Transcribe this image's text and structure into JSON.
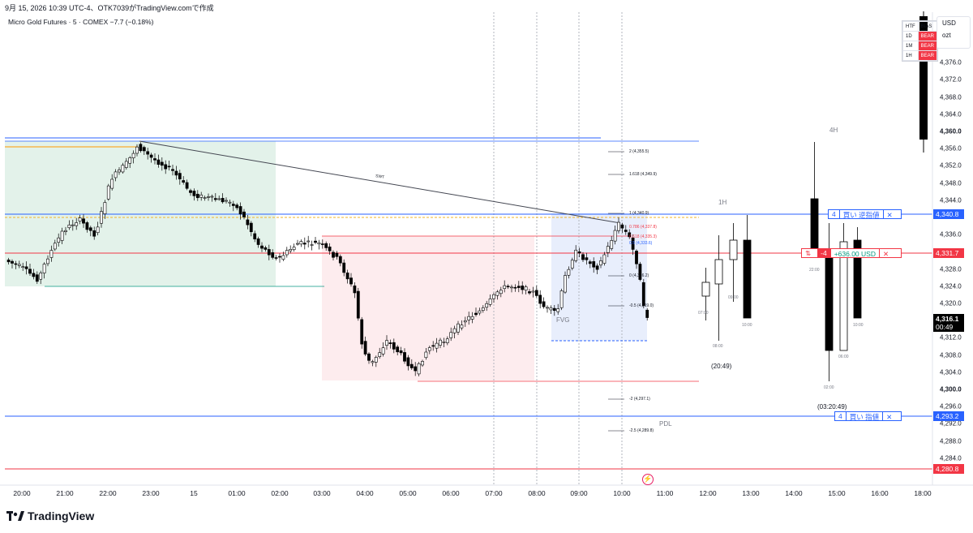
{
  "header": {
    "timestamp_line": "9月 15, 2026 10:39 UTC-4、OTK7039がTradingView.comで作成",
    "symbol_line": "Micro Gold Futures · 5 · COMEX  −7.7 (−0.18%)"
  },
  "axis": {
    "currency": "USD",
    "unit": "ozt",
    "ticks": [
      "4,376.0",
      "4,372.0",
      "4,368.0",
      "4,364.0",
      "4,360.0",
      "4,356.0",
      "4,352.0",
      "4,348.0",
      "4,344.0",
      "4,336.0",
      "4,328.0",
      "4,324.0",
      "4,320.0",
      "4,312.0",
      "4,308.0",
      "4,304.0",
      "4,300.0",
      "4,296.0",
      "4,292.0",
      "4,288.0",
      "4,284.0"
    ]
  },
  "price_tags": {
    "upper_blue": "4,340.8",
    "red_mid": "4,331.7",
    "current_price": "4,316.1",
    "current_countdown": "00:49",
    "lower_blue": "4,293.2",
    "bottom_red": "4,280.8"
  },
  "orders": {
    "stop_buy": {
      "qty": "4",
      "label": "買い 逆指値",
      "close": "✕"
    },
    "position": {
      "icon": "⇅",
      "qty": "-4",
      "pnl": "+636.00 USD",
      "close": "✕"
    },
    "limit_buy": {
      "qty": "4",
      "label": "買い 指値",
      "close": "✕"
    }
  },
  "bias_table": {
    "header": [
      "HTF",
      "BIAS"
    ],
    "rows": [
      [
        "1D",
        "BEAR"
      ],
      [
        "1M",
        "BEAR"
      ],
      [
        "1H",
        "BEAR"
      ]
    ]
  },
  "x_axis": [
    "20:00",
    "21:00",
    "22:00",
    "23:00",
    "15",
    "01:00",
    "02:00",
    "03:00",
    "04:00",
    "05:00",
    "06:00",
    "07:00",
    "08:00",
    "09:00",
    "10:00",
    "11:00",
    "12:00",
    "13:00",
    "14:00",
    "15:00",
    "16:00",
    "18:00"
  ],
  "fib_levels": [
    "2 (4,355.5)",
    "1.618 (4,349.9)",
    "1 (4,340.9)",
    "0.786 (4,337.8)",
    "0.618 (4,335.3)",
    "0.5 (4,333.6)",
    "0 (4,326.2)",
    "-0.5 (4,319.0)",
    "-2 (4,297.1)",
    "-2.5 (4,289.8)"
  ],
  "annotations": {
    "swing_label": "SWT",
    "pdl": "PDL",
    "fvg": "FVG",
    "tf_1h": "1H",
    "tf_4h": "4H",
    "timer_1h": "(20:49)",
    "timer_4h": "(03:20:49)",
    "htf_times_1h": [
      "07:00",
      "08:00",
      "09:00",
      "10:00"
    ],
    "htf_times_4h": [
      "22:00",
      "02:00",
      "06:00",
      "10:00"
    ]
  },
  "brand": "TradingView",
  "colors": {
    "bull_candle": "#ffffff",
    "bear_candle": "#000000",
    "blue_line": "#2962ff",
    "red_line": "#f23645",
    "green_zone": "#e3f2ea",
    "pink_zone": "#fdecee",
    "fvg_zone": "#e8eefc"
  }
}
